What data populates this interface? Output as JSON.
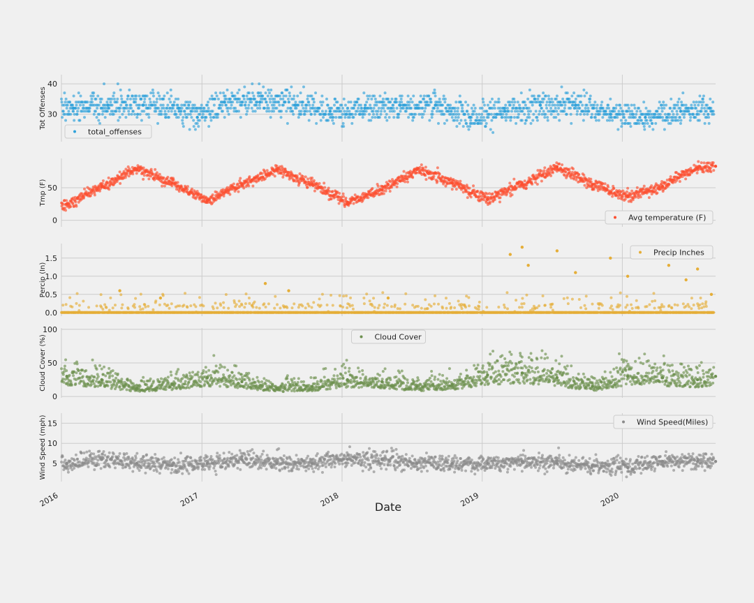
{
  "chart_data": {
    "type": "scatter",
    "xlabel": "Date",
    "xlim": [
      "2016-01-01",
      "2020-08-31"
    ],
    "x_ticks": [
      "2016",
      "2017",
      "2018",
      "2019",
      "2020"
    ],
    "grid": true,
    "panels": [
      {
        "ylabel": "Tot Offenses",
        "ylim": [
          21,
          43
        ],
        "yticks": [
          "30",
          "40"
        ],
        "color": "#30a2da",
        "legend": {
          "label": "total_offenses",
          "position": "lower-left"
        },
        "series": {
          "name": "total_offenses",
          "x": [
            "2016-02-01",
            "2016-05-01",
            "2016-08-01",
            "2016-11-01",
            "2016-12-20",
            "2017-03-01",
            "2017-06-01",
            "2017-09-01",
            "2017-12-01",
            "2018-03-01",
            "2018-06-01",
            "2018-09-01",
            "2018-12-01",
            "2019-03-01",
            "2019-06-01",
            "2019-09-01",
            "2019-12-01",
            "2020-03-01",
            "2020-06-01",
            "2020-08-15"
          ],
          "y": [
            32,
            33,
            33,
            32,
            29,
            34,
            34,
            33,
            31,
            32,
            33,
            33,
            29,
            31,
            33,
            33,
            30,
            29,
            31,
            32
          ]
        }
      },
      {
        "ylabel": "Tmp (F)",
        "ylim": [
          -10,
          95
        ],
        "yticks": [
          "0",
          "50"
        ],
        "color": "#fc4f30",
        "legend": {
          "label": "Avg temperature (F)",
          "position": "lower-right"
        },
        "series": {
          "name": "Avg temperature (F)",
          "x": [
            "2016-01-15",
            "2016-04-15",
            "2016-07-15",
            "2016-10-15",
            "2017-01-15",
            "2017-04-15",
            "2017-07-15",
            "2017-10-15",
            "2018-01-15",
            "2018-04-15",
            "2018-07-15",
            "2018-10-15",
            "2019-01-15",
            "2019-04-15",
            "2019-07-15",
            "2019-10-15",
            "2020-01-15",
            "2020-04-15",
            "2020-07-15",
            "2020-08-31"
          ],
          "y": [
            25,
            52,
            78,
            57,
            30,
            55,
            78,
            55,
            28,
            47,
            78,
            57,
            32,
            55,
            82,
            55,
            37,
            52,
            80,
            83
          ]
        }
      },
      {
        "ylabel": "Percip (In)",
        "ylim": [
          -0.1,
          1.9
        ],
        "yticks": [
          "0.0",
          "0.5",
          "1.0",
          "1.5"
        ],
        "color": "#e5ae38",
        "legend": {
          "label": "Precip Inches",
          "position": "upper-right"
        },
        "series": {
          "name": "Precip Inches",
          "x": [
            "2016-06-01",
            "2016-09-15",
            "2017-06-15",
            "2017-08-15",
            "2018-05-01",
            "2019-03-15",
            "2019-04-15",
            "2019-05-01",
            "2019-07-15",
            "2019-09-01",
            "2019-12-01",
            "2020-01-15",
            "2020-05-01",
            "2020-06-15",
            "2020-07-15",
            "2020-08-20"
          ],
          "y": [
            0.6,
            0.4,
            0.8,
            0.6,
            0.4,
            1.6,
            1.8,
            1.3,
            1.7,
            1.1,
            1.5,
            1.0,
            1.3,
            0.9,
            1.2,
            0.5
          ]
        }
      },
      {
        "ylabel": "Cloud Cover (%)",
        "ylim": [
          -2,
          102
        ],
        "yticks": [
          "0",
          "50",
          "100"
        ],
        "color": "#6d904f",
        "legend": {
          "label": "Cloud Cover",
          "position": "upper-center"
        },
        "series": {
          "name": "Cloud Cover",
          "x": [
            "2016-01-15",
            "2016-04-15",
            "2016-07-15",
            "2016-10-15",
            "2017-01-15",
            "2017-04-15",
            "2017-07-15",
            "2017-10-15",
            "2018-01-15",
            "2018-04-15",
            "2018-07-15",
            "2018-10-15",
            "2019-01-15",
            "2019-04-15",
            "2019-07-15",
            "2019-10-15",
            "2020-01-15",
            "2020-04-15",
            "2020-07-15",
            "2020-08-31"
          ],
          "y": [
            30,
            25,
            12,
            18,
            28,
            22,
            12,
            15,
            25,
            22,
            15,
            18,
            32,
            35,
            28,
            15,
            30,
            28,
            25,
            30
          ]
        }
      },
      {
        "ylabel": "Wind Speed (mph)",
        "ylim": [
          0.5,
          17.5
        ],
        "yticks": [
          "5",
          "10",
          "15"
        ],
        "color": "#8b8b8b",
        "legend": {
          "label": "Wind Speed(Miles)",
          "position": "upper-right"
        },
        "series": {
          "name": "Wind Speed(Miles)",
          "x": [
            "2016-01-15",
            "2016-04-15",
            "2016-07-15",
            "2016-10-15",
            "2017-01-15",
            "2017-04-15",
            "2017-07-15",
            "2017-10-15",
            "2018-01-15",
            "2018-04-15",
            "2018-07-15",
            "2018-10-15",
            "2019-01-15",
            "2019-04-15",
            "2019-07-15",
            "2019-10-15",
            "2020-01-15",
            "2020-04-15",
            "2020-07-15",
            "2020-08-31"
          ],
          "y": [
            5,
            6,
            5,
            4.5,
            5,
            6,
            5,
            5,
            6,
            6,
            5,
            5,
            5,
            5.5,
            5,
            4.5,
            4,
            5.5,
            5.5,
            5.5
          ]
        }
      }
    ]
  }
}
